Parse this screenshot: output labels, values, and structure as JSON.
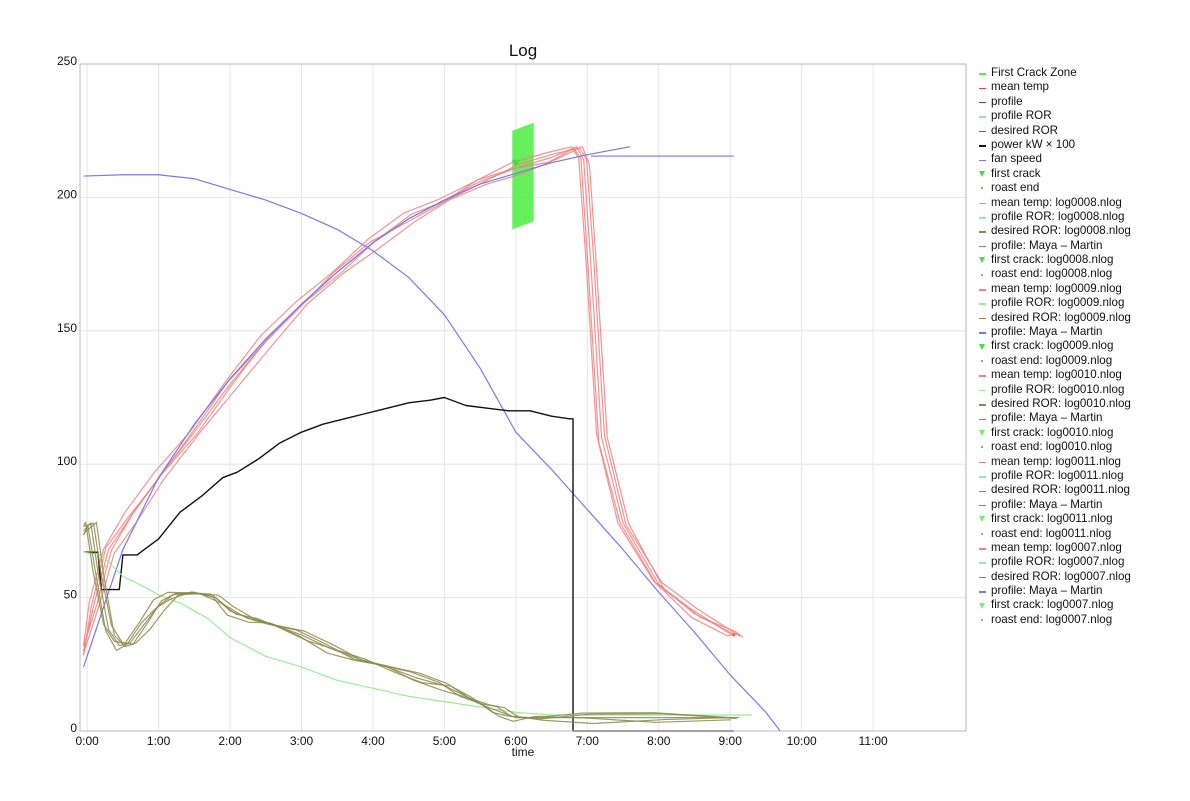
{
  "colors": {
    "zone": "#55f04a",
    "mean_temp": "#f08080",
    "profile": "#7878ee",
    "profile_ror": "#98ee98",
    "desired_ror": "#8a8a4a",
    "power": "#111111",
    "fan": "#7a7af0",
    "first_crack": "#44dd44",
    "roast_end": "#cc6666",
    "mean_temp_dark": "#e04848",
    "profile_dark": "#4444dd",
    "desired_dark": "#6a6a2a",
    "fc_light": "#77ee77"
  },
  "legend": [
    {
      "label": "First Crack Zone",
      "color": "zone",
      "kind": "line"
    },
    {
      "label": "mean temp",
      "color": "mean_temp_dark",
      "kind": "line"
    },
    {
      "label": "profile",
      "color": "profile_dark",
      "kind": "line"
    },
    {
      "label": "profile ROR",
      "color": "profile_ror",
      "kind": "line"
    },
    {
      "label": "desired ROR",
      "color": "desired_dark",
      "kind": "line"
    },
    {
      "label": "power kW × 100",
      "color": "power",
      "kind": "line"
    },
    {
      "label": "fan speed",
      "color": "fan",
      "kind": "line"
    },
    {
      "label": "first crack",
      "color": "first_crack",
      "kind": "tri"
    },
    {
      "label": "roast end",
      "color": "roast_end",
      "kind": "dot"
    },
    {
      "label": "mean temp: log0008.nlog",
      "color": "mean_temp",
      "kind": "line"
    },
    {
      "label": "profile ROR: log0008.nlog",
      "color": "profile_ror",
      "kind": "line"
    },
    {
      "label": "desired ROR: log0008.nlog",
      "color": "desired_ror",
      "kind": "line"
    },
    {
      "label": "profile: Maya – Martin",
      "color": "profile",
      "kind": "line"
    },
    {
      "label": "first crack: log0008.nlog",
      "color": "first_crack",
      "kind": "tri"
    },
    {
      "label": "roast end: log0008.nlog",
      "color": "roast_end",
      "kind": "dot"
    },
    {
      "label": "mean temp: log0009.nlog",
      "color": "mean_temp",
      "kind": "line"
    },
    {
      "label": "profile ROR: log0009.nlog",
      "color": "profile_ror",
      "kind": "line"
    },
    {
      "label": "desired ROR: log0009.nlog",
      "color": "desired_ror",
      "kind": "line"
    },
    {
      "label": "profile: Maya – Martin",
      "color": "profile",
      "kind": "line"
    },
    {
      "label": "first crack: log0009.nlog",
      "color": "first_crack",
      "kind": "tri"
    },
    {
      "label": "roast end: log0009.nlog",
      "color": "roast_end",
      "kind": "dot"
    },
    {
      "label": "mean temp: log0010.nlog",
      "color": "mean_temp",
      "kind": "line"
    },
    {
      "label": "profile ROR: log0010.nlog",
      "color": "profile_ror",
      "kind": "line"
    },
    {
      "label": "desired ROR: log0010.nlog",
      "color": "desired_ror",
      "kind": "line"
    },
    {
      "label": "profile: Maya – Martin",
      "color": "profile",
      "kind": "line"
    },
    {
      "label": "first crack: log0010.nlog",
      "color": "fc_light",
      "kind": "tri"
    },
    {
      "label": "roast end: log0010.nlog",
      "color": "roast_end",
      "kind": "dot"
    },
    {
      "label": "mean temp: log0011.nlog",
      "color": "mean_temp",
      "kind": "line"
    },
    {
      "label": "profile ROR: log0011.nlog",
      "color": "profile_ror",
      "kind": "line"
    },
    {
      "label": "desired ROR: log0011.nlog",
      "color": "desired_ror",
      "kind": "line"
    },
    {
      "label": "profile: Maya – Martin",
      "color": "profile",
      "kind": "line"
    },
    {
      "label": "first crack: log0011.nlog",
      "color": "fc_light",
      "kind": "tri"
    },
    {
      "label": "roast end: log0011.nlog",
      "color": "roast_end",
      "kind": "dot"
    },
    {
      "label": "mean temp: log0007.nlog",
      "color": "mean_temp",
      "kind": "line"
    },
    {
      "label": "profile ROR: log0007.nlog",
      "color": "profile_ror",
      "kind": "line"
    },
    {
      "label": "desired ROR: log0007.nlog",
      "color": "desired_ror",
      "kind": "line"
    },
    {
      "label": "profile: Maya – Martin",
      "color": "profile",
      "kind": "line"
    },
    {
      "label": "first crack: log0007.nlog",
      "color": "fc_light",
      "kind": "tri"
    },
    {
      "label": "roast end: log0007.nlog",
      "color": "roast_end",
      "kind": "dot"
    }
  ],
  "chart_data": {
    "type": "line",
    "title": "Log",
    "xlabel": "time",
    "ylabel": "",
    "xlim": [
      -0.1,
      12.3
    ],
    "ylim": [
      0,
      250
    ],
    "x_unit": "minutes",
    "x_ticks": [
      {
        "label": "0:00",
        "value": 0
      },
      {
        "label": "1:00",
        "value": 1
      },
      {
        "label": "2:00",
        "value": 2
      },
      {
        "label": "3:00",
        "value": 3
      },
      {
        "label": "4:00",
        "value": 4
      },
      {
        "label": "5:00",
        "value": 5
      },
      {
        "label": "6:00",
        "value": 6
      },
      {
        "label": "7:00",
        "value": 7
      },
      {
        "label": "8:00",
        "value": 8
      },
      {
        "label": "9:00",
        "value": 9
      },
      {
        "label": "10:00",
        "value": 10
      },
      {
        "label": "11:00",
        "value": 11
      }
    ],
    "y_ticks": [
      {
        "label": "0",
        "value": 0
      },
      {
        "label": "50",
        "value": 50
      },
      {
        "label": "100",
        "value": 100
      },
      {
        "label": "150",
        "value": 150
      },
      {
        "label": "200",
        "value": 200
      },
      {
        "label": "250",
        "value": 250
      }
    ],
    "grid": true,
    "legend_position": "right",
    "first_crack_zone": {
      "x0": 5.95,
      "x1": 6.25,
      "y_bottom": [
        188,
        191
      ],
      "y_top": [
        225,
        228
      ]
    },
    "series": [
      {
        "name": "mean temp",
        "color": "mean_temp",
        "runs": 5,
        "x": [
          -0.05,
          0.1,
          0.3,
          0.6,
          1.0,
          1.5,
          2.0,
          2.5,
          3.0,
          3.5,
          4.0,
          4.5,
          5.0,
          5.5,
          6.0,
          6.5,
          6.85,
          6.95,
          7.05,
          7.2,
          7.5,
          8.0,
          8.5,
          9.0,
          9.1
        ],
        "y": [
          30,
          48,
          68,
          80,
          95,
          112,
          130,
          146,
          160,
          172,
          183,
          192,
          199,
          206,
          211,
          215,
          219,
          214,
          175,
          110,
          78,
          55,
          44,
          37,
          36
        ]
      },
      {
        "name": "profile",
        "color": "profile",
        "x": [
          -0.05,
          0.5,
          1.0,
          1.5,
          2.0,
          2.5,
          3.0,
          3.5,
          4.0,
          4.5,
          5.0,
          5.5,
          6.0,
          6.5,
          7.0,
          7.6
        ],
        "y": [
          24,
          68,
          95,
          115,
          132,
          147,
          160,
          172,
          183,
          192,
          199,
          205,
          209,
          213,
          216,
          219
        ]
      },
      {
        "name": "fan speed",
        "color": "fan",
        "x": [
          -0.05,
          0.5,
          1.0,
          1.5,
          2.0,
          2.5,
          3.0,
          3.5,
          4.0,
          4.5,
          5.0,
          5.5,
          6.0,
          6.5,
          7.0,
          7.5,
          8.0,
          8.5,
          9.0,
          9.5,
          9.7
        ],
        "y": [
          208,
          208.5,
          208.5,
          207,
          203,
          199,
          194,
          188,
          180,
          170,
          156,
          136,
          112,
          98,
          83,
          68,
          52,
          37,
          21,
          7,
          0
        ]
      },
      {
        "name": "fan speed (hold)",
        "color": "profile",
        "x": [
          7.05,
          9.05
        ],
        "y": [
          215.5,
          215.5
        ]
      },
      {
        "name": "power kW × 100",
        "color": "power",
        "x": [
          -0.05,
          0.15,
          0.2,
          0.45,
          0.5,
          0.7,
          0.75,
          1.0,
          1.3,
          1.6,
          1.9,
          2.1,
          2.4,
          2.7,
          3.0,
          3.3,
          3.6,
          3.9,
          4.2,
          4.5,
          4.8,
          5.0,
          5.3,
          5.6,
          5.9,
          6.2,
          6.5,
          6.75,
          6.8,
          6.8,
          9.05
        ],
        "y": [
          67,
          67,
          53,
          53,
          66,
          66,
          67,
          72,
          82,
          88,
          95,
          97,
          102,
          108,
          112,
          115,
          117,
          119,
          121,
          123,
          124,
          125,
          122,
          121,
          120,
          120,
          118,
          117,
          117,
          0,
          0
        ]
      },
      {
        "name": "profile ROR",
        "color": "profile_ror",
        "x": [
          -0.05,
          0.2,
          0.5,
          0.8,
          1.0,
          1.3,
          1.7,
          2.0,
          2.5,
          3.0,
          3.5,
          4.0,
          4.5,
          5.0,
          5.5,
          6.0,
          6.5,
          7.0,
          8.0,
          9.3
        ],
        "y": [
          67,
          66,
          58,
          54,
          51,
          48,
          42,
          35,
          28,
          24,
          19,
          16,
          13,
          11,
          9,
          7,
          6,
          6,
          6,
          6
        ]
      },
      {
        "name": "desired ROR",
        "color": "desired_ror",
        "runs": 5,
        "x": [
          -0.05,
          0.05,
          0.15,
          0.3,
          0.45,
          0.6,
          0.8,
          1.0,
          1.2,
          1.5,
          1.8,
          2.0,
          2.3,
          2.6,
          3.0,
          3.4,
          3.8,
          4.2,
          4.6,
          5.0,
          5.3,
          5.6,
          5.8,
          6.0,
          6.3,
          7.0,
          8.0,
          9.05
        ],
        "y": [
          75,
          78,
          60,
          38,
          32,
          33,
          40,
          47,
          51,
          52,
          50,
          45,
          42,
          40,
          36,
          31,
          27,
          24,
          20,
          17,
          13,
          9,
          7,
          5,
          5,
          5,
          5,
          5
        ]
      }
    ]
  }
}
